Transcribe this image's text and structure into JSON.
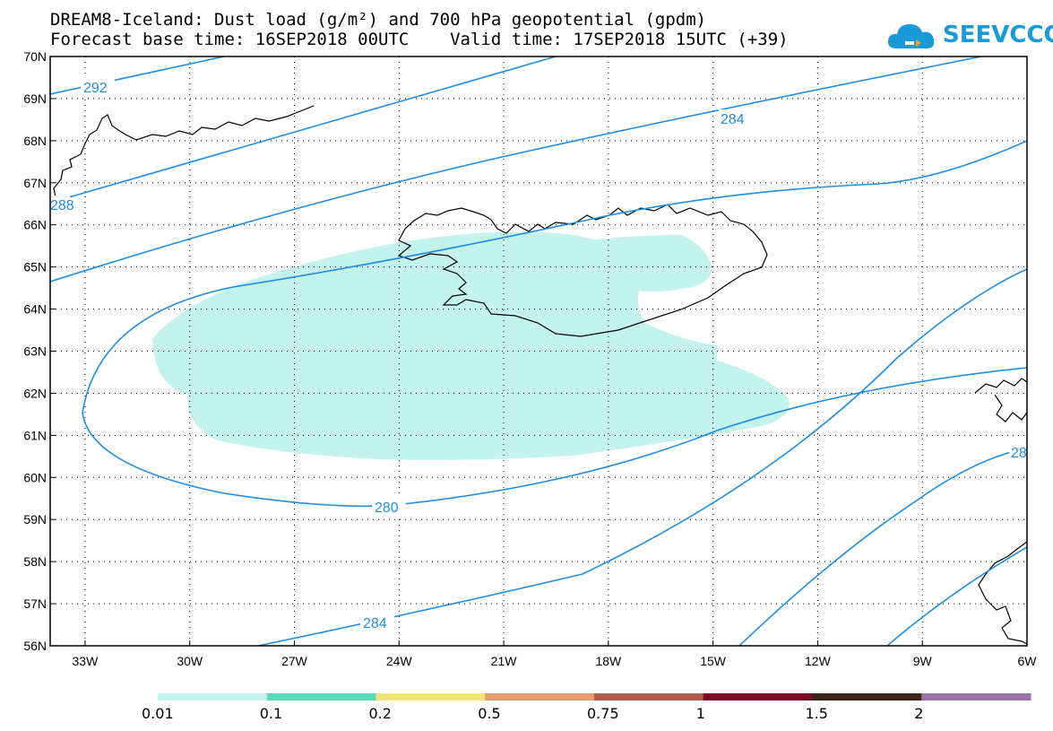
{
  "title_line1": "DREAM8-Iceland: Dust load (g/m²) and 700 hPa geopotential (gpdm)",
  "title_line2": "Forecast base time: 16SEP2018 00UTC    Valid time: 17SEP2018 15UTC (+39)",
  "logo_text": "SEEVCCC",
  "map": {
    "lon_range": [
      -34,
      -6
    ],
    "lat_range": [
      56,
      70
    ],
    "lat_ticks": [
      "70N",
      "69N",
      "68N",
      "67N",
      "66N",
      "65N",
      "64N",
      "63N",
      "62N",
      "61N",
      "60N",
      "59N",
      "58N",
      "57N",
      "56N"
    ],
    "lon_ticks": [
      "33W",
      "30W",
      "27W",
      "24W",
      "21W",
      "18W",
      "15W",
      "12W",
      "9W",
      "6W"
    ],
    "contour_color": "#1f8ee6",
    "contour_labels": [
      "292",
      "288",
      "284",
      "280",
      "284",
      "28"
    ],
    "dust_color": "#c4f2ec"
  },
  "colorbar": {
    "segments": [
      {
        "color": "#c4f2ec"
      },
      {
        "color": "#5ad9b4"
      },
      {
        "color": "#f4e37a"
      },
      {
        "color": "#e89a6e"
      },
      {
        "color": "#b05a4a"
      },
      {
        "color": "#7a0a2a"
      },
      {
        "color": "#3a2418"
      },
      {
        "color": "#9b73a8"
      }
    ],
    "labels": [
      "0.01",
      "0.1",
      "0.2",
      "0.5",
      "0.75",
      "1",
      "1.5",
      "2"
    ]
  }
}
